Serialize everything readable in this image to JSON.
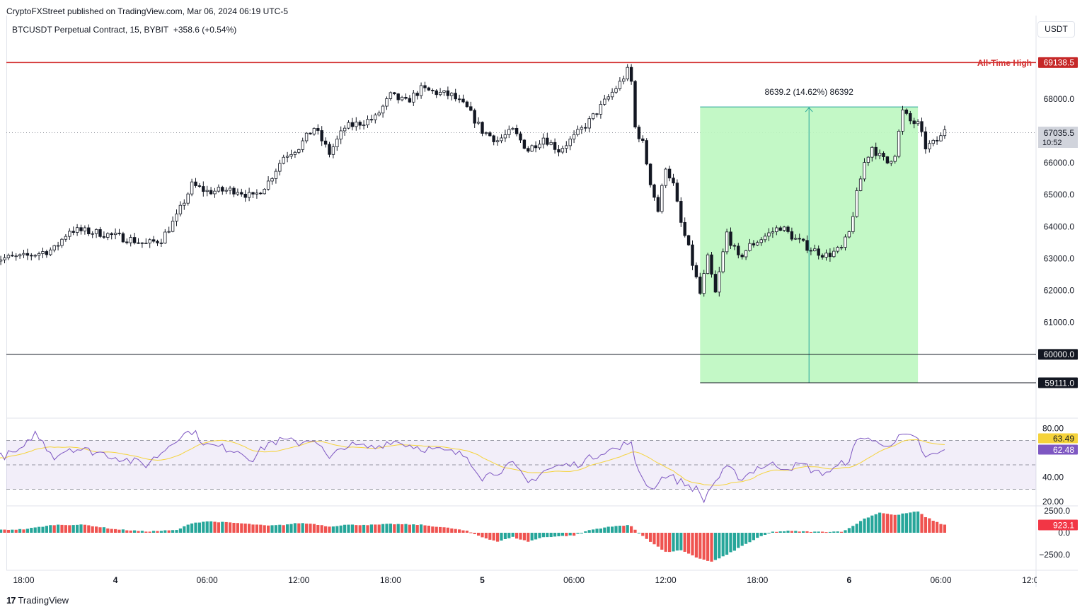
{
  "publisher": "CryptoFXStreet published on TradingView.com, Mar 06, 2024 06:19 UTC-5",
  "symbol": "BTCUSDT Perpetual Contract, 15, BYBIT",
  "change": "+358.6 (+0.54%)",
  "currency": "USDT",
  "brand": "TradingView",
  "colors": {
    "up": "#089981",
    "down": "#f23645",
    "ath": "#d32f2f",
    "measure_fill": "#bdf7c0",
    "measure_line": "#26a69a",
    "rsi": "#7e57c2",
    "rsi_ma": "#f5d33b"
  },
  "chart_data": [
    {
      "type": "candlestick",
      "interval": "15",
      "ylim": [
        58300,
        69900
      ],
      "y_ticks": [
        "68000.0",
        "67000.0",
        "66000.0",
        "65000.0",
        "64000.0",
        "63000.0",
        "62000.0",
        "61000.0"
      ],
      "x_ticks": [
        "18:00",
        "4",
        "06:00",
        "12:00",
        "18:00",
        "5",
        "06:00",
        "12:00",
        "18:00",
        "6",
        "06:00",
        "12:00"
      ],
      "anchors": [
        [
          "Mar 3 16:00",
          62990
        ],
        [
          "Mar 3 18:00",
          63050
        ],
        [
          "Mar 3 20:00",
          63300
        ],
        [
          "Mar 3 21:00",
          63900
        ],
        [
          "Mar 3 23:00",
          63800
        ],
        [
          "Mar 4 01:00",
          63600
        ],
        [
          "Mar 4 02:00",
          63450
        ],
        [
          "Mar 4 03:00",
          63600
        ],
        [
          "Mar 4 04:00",
          64300
        ],
        [
          "Mar 4 05:00",
          65300
        ],
        [
          "Mar 4 06:00",
          65100
        ],
        [
          "Mar 4 08:00",
          65150
        ],
        [
          "Mar 4 09:00",
          64900
        ],
        [
          "Mar 4 10:00",
          65400
        ],
        [
          "Mar 4 11:00",
          66200
        ],
        [
          "Mar 4 12:00",
          66500
        ],
        [
          "Mar 4 13:00",
          67100
        ],
        [
          "Mar 4 14:00",
          66300
        ],
        [
          "Mar 4 15:00",
          67100
        ],
        [
          "Mar 4 17:00",
          67400
        ],
        [
          "Mar 4 18:00",
          68100
        ],
        [
          "Mar 4 19:00",
          67900
        ],
        [
          "Mar 4 20:00",
          68300
        ],
        [
          "Mar 4 22:00",
          68100
        ],
        [
          "Mar 4 23:00",
          67700
        ],
        [
          "Mar 5 00:00",
          67000
        ],
        [
          "Mar 5 01:00",
          66700
        ],
        [
          "Mar 5 02:00",
          67000
        ],
        [
          "Mar 5 03:00",
          66400
        ],
        [
          "Mar 5 04:00",
          66800
        ],
        [
          "Mar 5 05:00",
          66400
        ],
        [
          "Mar 5 06:00",
          66800
        ],
        [
          "Mar 5 07:00",
          67300
        ],
        [
          "Mar 5 08:00",
          67900
        ],
        [
          "Mar 5 09:00",
          68500
        ],
        [
          "Mar 5 09:40",
          69000
        ],
        [
          "Mar 5 10:00",
          67100
        ],
        [
          "Mar 5 10:30",
          66600
        ],
        [
          "Mar 5 11:00",
          65400
        ],
        [
          "Mar 5 11:30",
          64500
        ],
        [
          "Mar 5 12:00",
          65900
        ],
        [
          "Mar 5 12:30",
          65300
        ],
        [
          "Mar 5 13:00",
          64100
        ],
        [
          "Mar 5 13:30",
          63300
        ],
        [
          "Mar 5 14:15",
          61900
        ],
        [
          "Mar 5 14:45",
          63000
        ],
        [
          "Mar 5 15:15",
          61900
        ],
        [
          "Mar 5 16:00",
          63800
        ],
        [
          "Mar 5 16:45",
          63000
        ],
        [
          "Mar 5 17:30",
          63400
        ],
        [
          "Mar 5 18:30",
          63700
        ],
        [
          "Mar 5 19:30",
          64000
        ],
        [
          "Mar 5 20:30",
          63600
        ],
        [
          "Mar 5 21:30",
          63300
        ],
        [
          "Mar 5 22:30",
          63100
        ],
        [
          "Mar 5 23:30",
          63300
        ],
        [
          "Mar 6 00:00",
          63800
        ],
        [
          "Mar 6 00:30",
          65000
        ],
        [
          "Mar 6 01:00",
          66000
        ],
        [
          "Mar 6 01:30",
          66500
        ],
        [
          "Mar 6 02:00",
          66200
        ],
        [
          "Mar 6 02:30",
          66000
        ],
        [
          "Mar 6 03:00",
          66300
        ],
        [
          "Mar 6 03:30",
          67600
        ],
        [
          "Mar 6 04:00",
          67300
        ],
        [
          "Mar 6 04:30",
          67200
        ],
        [
          "Mar 6 05:00",
          66500
        ],
        [
          "Mar 6 05:30",
          66600
        ],
        [
          "Mar 6 06:00",
          66800
        ],
        [
          "Mar 6 06:15",
          67035.5
        ]
      ],
      "last_price": "67035.5",
      "last_countdown": "10:52",
      "ath": {
        "label": "All-Time High",
        "value": "69138.5"
      },
      "support_60000": "60000.0",
      "support_59111": "59111.0",
      "measure": {
        "label": "8639.2 (14.62%) 86392",
        "from": 59111,
        "to": 67750,
        "start": "Mar 5 14:15",
        "end": "Mar 6 04:30"
      }
    },
    {
      "type": "line",
      "name": "RSI",
      "ylim": [
        15,
        85
      ],
      "y_ticks": [
        "80.00",
        "40.00",
        "20.00"
      ],
      "bands": [
        70,
        50,
        30
      ],
      "rsi_value": "62.48",
      "ma_value": "63.49",
      "anchors": [
        [
          "Mar 3 16:00",
          55
        ],
        [
          "Mar 3 18:00",
          62
        ],
        [
          "Mar 3 18:40",
          77
        ],
        [
          "Mar 3 20:00",
          57
        ],
        [
          "Mar 3 21:00",
          64
        ],
        [
          "Mar 3 23:00",
          60
        ],
        [
          "Mar 4 02:00",
          50
        ],
        [
          "Mar 4 03:00",
          60
        ],
        [
          "Mar 4 04:00",
          72
        ],
        [
          "Mar 4 05:00",
          78
        ],
        [
          "Mar 4 06:00",
          66
        ],
        [
          "Mar 4 08:00",
          62
        ],
        [
          "Mar 4 09:00",
          55
        ],
        [
          "Mar 4 10:00",
          68
        ],
        [
          "Mar 4 11:00",
          70
        ],
        [
          "Mar 4 12:00",
          68
        ],
        [
          "Mar 4 13:00",
          72
        ],
        [
          "Mar 4 14:00",
          54
        ],
        [
          "Mar 4 15:00",
          66
        ],
        [
          "Mar 4 17:00",
          64
        ],
        [
          "Mar 4 18:00",
          70
        ],
        [
          "Mar 4 20:00",
          64
        ],
        [
          "Mar 4 22:00",
          60
        ],
        [
          "Mar 4 23:00",
          57
        ],
        [
          "Mar 5 00:00",
          40
        ],
        [
          "Mar 5 01:00",
          45
        ],
        [
          "Mar 5 02:00",
          50
        ],
        [
          "Mar 5 03:00",
          35
        ],
        [
          "Mar 5 04:00",
          45
        ],
        [
          "Mar 5 05:00",
          49
        ],
        [
          "Mar 5 06:00",
          50
        ],
        [
          "Mar 5 07:00",
          55
        ],
        [
          "Mar 5 08:00",
          62
        ],
        [
          "Mar 5 09:00",
          63
        ],
        [
          "Mar 5 09:40",
          72
        ],
        [
          "Mar 5 10:00",
          50
        ],
        [
          "Mar 5 11:00",
          30
        ],
        [
          "Mar 5 12:00",
          42
        ],
        [
          "Mar 5 13:00",
          36
        ],
        [
          "Mar 5 14:00",
          30
        ],
        [
          "Mar 5 14:30",
          21
        ],
        [
          "Mar 5 15:00",
          33
        ],
        [
          "Mar 5 16:00",
          47
        ],
        [
          "Mar 5 17:00",
          39
        ],
        [
          "Mar 5 18:00",
          48
        ],
        [
          "Mar 5 19:00",
          50
        ],
        [
          "Mar 5 20:00",
          48
        ],
        [
          "Mar 5 21:00",
          50
        ],
        [
          "Mar 5 22:00",
          43
        ],
        [
          "Mar 5 23:00",
          46
        ],
        [
          "Mar 6 00:00",
          55
        ],
        [
          "Mar 6 00:30",
          68
        ],
        [
          "Mar 6 01:00",
          74
        ],
        [
          "Mar 6 02:00",
          66
        ],
        [
          "Mar 6 02:30",
          68
        ],
        [
          "Mar 6 03:00",
          69
        ],
        [
          "Mar 6 03:30",
          74
        ],
        [
          "Mar 6 04:00",
          72
        ],
        [
          "Mar 6 04:30",
          70
        ],
        [
          "Mar 6 05:00",
          55
        ],
        [
          "Mar 6 05:30",
          58
        ],
        [
          "Mar 6 06:00",
          60
        ],
        [
          "Mar 6 06:15",
          62.48
        ]
      ]
    },
    {
      "type": "bar",
      "name": "MACD histogram",
      "ylim": [
        -3300,
        3300
      ],
      "y_ticks": [
        "2500.0",
        "0.0",
        "−2500.0"
      ],
      "value": "923.1",
      "anchors": [
        [
          "Mar 3 16:00",
          300
        ],
        [
          "Mar 3 18:00",
          400
        ],
        [
          "Mar 3 20:00",
          900
        ],
        [
          "Mar 3 22:00",
          900
        ],
        [
          "Mar 4 00:00",
          400
        ],
        [
          "Mar 4 02:00",
          150
        ],
        [
          "Mar 4 04:00",
          300
        ],
        [
          "Mar 4 05:00",
          1100
        ],
        [
          "Mar 4 06:00",
          1300
        ],
        [
          "Mar 4 08:00",
          1100
        ],
        [
          "Mar 4 10:00",
          800
        ],
        [
          "Mar 4 11:00",
          900
        ],
        [
          "Mar 4 12:00",
          1100
        ],
        [
          "Mar 4 13:00",
          1000
        ],
        [
          "Mar 4 14:00",
          700
        ],
        [
          "Mar 4 15:00",
          900
        ],
        [
          "Mar 4 17:00",
          900
        ],
        [
          "Mar 4 18:00",
          1000
        ],
        [
          "Mar 4 20:00",
          900
        ],
        [
          "Mar 4 22:00",
          500
        ],
        [
          "Mar 4 23:00",
          200
        ],
        [
          "Mar 5 00:00",
          -500
        ],
        [
          "Mar 5 01:00",
          -1000
        ],
        [
          "Mar 5 02:00",
          -500
        ],
        [
          "Mar 5 03:00",
          -1000
        ],
        [
          "Mar 5 04:00",
          -500
        ],
        [
          "Mar 5 06:00",
          -300
        ],
        [
          "Mar 5 07:00",
          300
        ],
        [
          "Mar 5 08:00",
          600
        ],
        [
          "Mar 5 09:00",
          800
        ],
        [
          "Mar 5 09:40",
          900
        ],
        [
          "Mar 5 10:00",
          300
        ],
        [
          "Mar 5 11:00",
          -1000
        ],
        [
          "Mar 5 12:00",
          -2200
        ],
        [
          "Mar 5 13:00",
          -2000
        ],
        [
          "Mar 5 14:00",
          -2800
        ],
        [
          "Mar 5 15:00",
          -3300
        ],
        [
          "Mar 5 16:00",
          -2500
        ],
        [
          "Mar 5 17:00",
          -1500
        ],
        [
          "Mar 5 18:00",
          -600
        ],
        [
          "Mar 5 19:00",
          100
        ],
        [
          "Mar 5 20:00",
          200
        ],
        [
          "Mar 5 22:00",
          100
        ],
        [
          "Mar 5 23:30",
          150
        ],
        [
          "Mar 6 00:00",
          500
        ],
        [
          "Mar 6 01:00",
          1600
        ],
        [
          "Mar 6 02:00",
          2300
        ],
        [
          "Mar 6 03:00",
          2000
        ],
        [
          "Mar 6 04:00",
          2300
        ],
        [
          "Mar 6 04:30",
          2400
        ],
        [
          "Mar 6 05:00",
          1800
        ],
        [
          "Mar 6 06:00",
          1000
        ],
        [
          "Mar 6 06:15",
          923.1
        ]
      ]
    }
  ]
}
